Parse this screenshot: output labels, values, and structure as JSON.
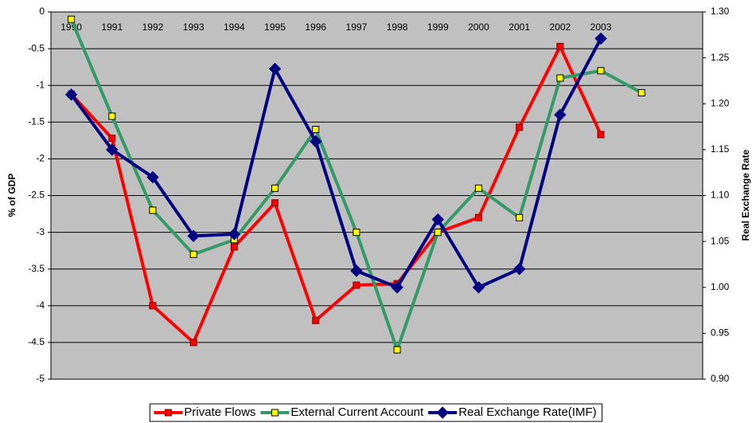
{
  "chart_data": {
    "type": "line",
    "y_label": "% of GDP",
    "y2_label": "Real Exchange Rate",
    "categories": [
      "1990",
      "1991",
      "1992",
      "1993",
      "1994",
      "1995",
      "1996",
      "1997",
      "1998",
      "1999",
      "2000",
      "2001",
      "2002",
      "2003",
      null,
      null
    ],
    "ylim": [
      -5,
      0
    ],
    "yticks": [
      0,
      -0.5,
      -1,
      -1.5,
      -2,
      -2.5,
      -3,
      -3.5,
      -4,
      -4.5,
      -5
    ],
    "y2lim": [
      0.9,
      1.3
    ],
    "y2ticks": [
      {
        "value": 1.3,
        "label": "1.30"
      },
      {
        "value": 1.25,
        "label": "1.25"
      },
      {
        "value": 1.2,
        "label": "1.20"
      },
      {
        "value": 1.15,
        "label": "1.15"
      },
      {
        "value": 1.1,
        "label": "1.10"
      },
      {
        "value": 1.05,
        "label": "1.05"
      },
      {
        "value": 1.0,
        "label": "1.00"
      },
      {
        "value": 0.95,
        "label": "0.95"
      },
      {
        "value": 0.9,
        "label": "0.90"
      }
    ],
    "grid": true,
    "legend": "bottom",
    "series": [
      {
        "name": "Private Flows",
        "color": "#ff0000",
        "marker": "square",
        "marker_fill": "#ff0000",
        "values": [
          -1.12,
          -1.72,
          -4.0,
          -4.5,
          -3.2,
          -2.6,
          -4.2,
          -3.72,
          -3.7,
          -3.0,
          -2.8,
          -1.57,
          -0.47,
          -1.67,
          null,
          null
        ]
      },
      {
        "name": "External Current Account",
        "color": "#339966",
        "marker": "square",
        "marker_fill": "#ffff00",
        "values": [
          -0.1,
          -1.42,
          -2.7,
          -3.3,
          -3.1,
          -2.4,
          -1.6,
          -3.0,
          -4.6,
          -3.0,
          -2.4,
          -2.8,
          -0.9,
          -0.8,
          -1.1,
          null
        ]
      },
      {
        "name": "Real Exchange Rate(IMF)",
        "color": "#000080",
        "marker": "diamond",
        "marker_fill": "#000080",
        "axis": "y2",
        "values": [
          1.21,
          1.15,
          1.12,
          1.056,
          1.058,
          1.238,
          1.159,
          1.018,
          1.0,
          1.074,
          1.0,
          1.02,
          1.188,
          1.271,
          null,
          null
        ]
      }
    ]
  }
}
